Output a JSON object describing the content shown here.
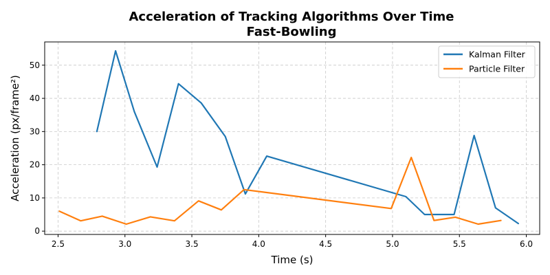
{
  "chart_data": {
    "type": "line",
    "title": "Acceleration of Tracking Algorithms Over Time",
    "subtitle": "Fast-Bowling",
    "xlabel": "Time (s)",
    "ylabel": "Acceleration (px/frame²)",
    "xlim": [
      2.4,
      6.1
    ],
    "ylim": [
      -1,
      57
    ],
    "xticks": [
      2.5,
      3.0,
      3.5,
      4.0,
      4.5,
      5.0,
      5.5,
      6.0
    ],
    "xtick_labels": [
      "2.5",
      "3.0",
      "3.5",
      "4.0",
      "4.5",
      "5.0",
      "5.5",
      "6.0"
    ],
    "yticks": [
      0,
      10,
      20,
      30,
      40,
      50
    ],
    "ytick_labels": [
      "0",
      "10",
      "20",
      "30",
      "40",
      "50"
    ],
    "grid": true,
    "legend_position": "top-right",
    "series": [
      {
        "name": "Kalman Filter",
        "color": "#1f77b4",
        "x": [
          2.79,
          2.93,
          3.07,
          3.24,
          3.4,
          3.57,
          3.75,
          3.9,
          4.06,
          5.1,
          5.24,
          5.46,
          5.61,
          5.77,
          5.94
        ],
        "y": [
          30.0,
          54.3,
          36.0,
          19.3,
          44.4,
          38.6,
          28.5,
          11.2,
          22.6,
          10.4,
          5.0,
          5.0,
          28.8,
          7.0,
          2.3
        ]
      },
      {
        "name": "Particle Filter",
        "color": "#ff7f0e",
        "x": [
          2.51,
          2.67,
          2.83,
          3.01,
          3.19,
          3.37,
          3.55,
          3.72,
          3.89,
          4.99,
          5.14,
          5.31,
          5.47,
          5.64,
          5.81
        ],
        "y": [
          6.0,
          3.1,
          4.5,
          2.1,
          4.3,
          3.1,
          9.1,
          6.4,
          12.5,
          6.8,
          22.2,
          3.2,
          4.2,
          2.1,
          3.2
        ]
      }
    ]
  }
}
